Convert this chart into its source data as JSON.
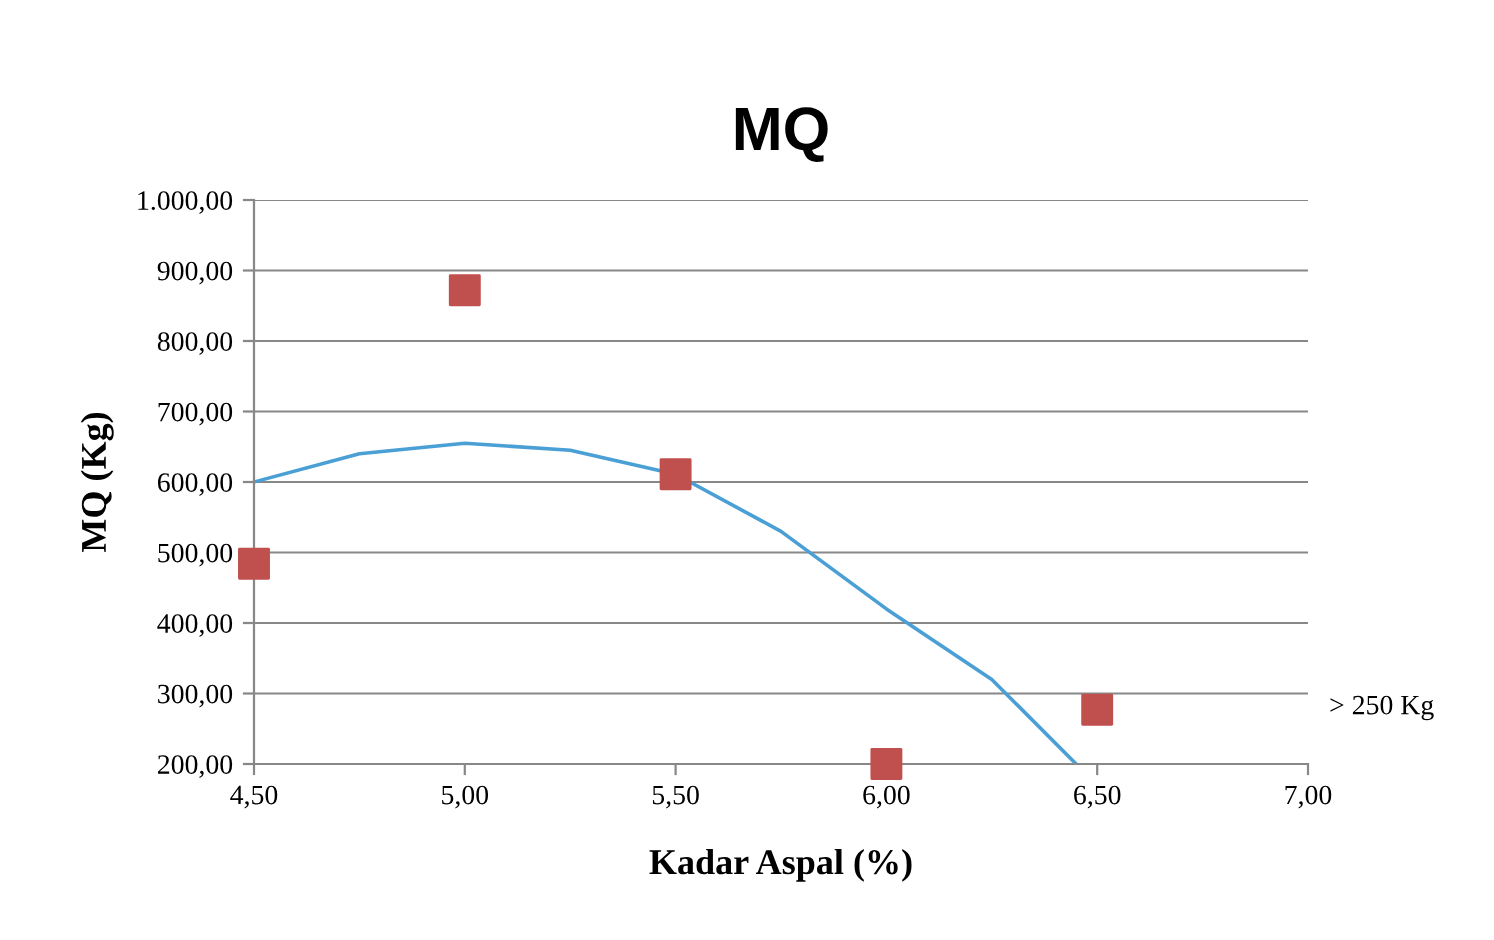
{
  "chart_data": {
    "type": "scatter",
    "title": "MQ",
    "xlabel": "Kadar Aspal (%)",
    "ylabel": "MQ (Kg)",
    "series": [
      {
        "color": "#c0504d",
        "marker": "square",
        "x": [
          4.5,
          5.0,
          5.5,
          6.0,
          6.5
        ],
        "values": [
          484,
          872,
          611,
          200,
          277
        ]
      },
      {
        "type": "line",
        "color": "#4a9fd5",
        "marker": "none",
        "x": [
          4.5,
          4.75,
          5.0,
          5.25,
          5.5,
          5.75,
          6.0,
          6.25,
          6.45
        ],
        "values": [
          600,
          640,
          655,
          645,
          611,
          530,
          420,
          320,
          200
        ]
      }
    ],
    "xlim": [
      4.5,
      7.0
    ],
    "xticks": [
      {
        "value": 4.5,
        "label": "4,50"
      },
      {
        "value": 5.0,
        "label": "5,00"
      },
      {
        "value": 5.5,
        "label": "5,50"
      },
      {
        "value": 6.0,
        "label": "6,00"
      },
      {
        "value": 6.5,
        "label": "6,50"
      },
      {
        "value": 7.0,
        "label": "7,00"
      }
    ],
    "ylim": [
      200,
      1000
    ],
    "yticks": [
      {
        "value": 200,
        "label": "200,00"
      },
      {
        "value": 300,
        "label": "300,00"
      },
      {
        "value": 400,
        "label": "400,00"
      },
      {
        "value": 500,
        "label": "500,00"
      },
      {
        "value": 600,
        "label": "600,00"
      },
      {
        "value": 700,
        "label": "700,00"
      },
      {
        "value": 800,
        "label": "800,00"
      },
      {
        "value": 900,
        "label": "900,00"
      },
      {
        "value": 1000,
        "label": "1.000,00"
      }
    ],
    "grid": "y",
    "annotations": [
      "> 250 Kg"
    ]
  }
}
